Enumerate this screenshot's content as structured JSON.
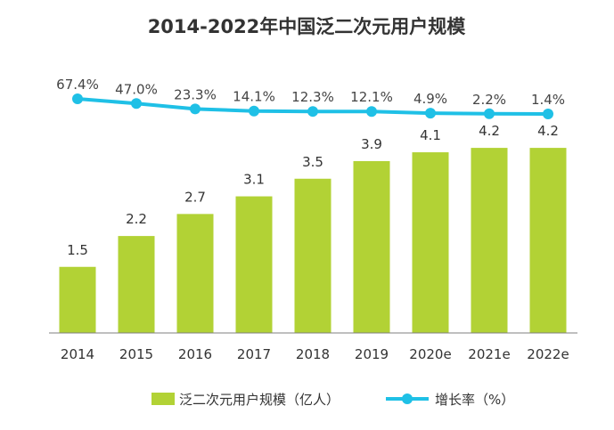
{
  "chart_data": {
    "type": "bar+line",
    "title": "2014-2022年中国泛二次元用户规模",
    "categories": [
      "2014",
      "2015",
      "2016",
      "2017",
      "2018",
      "2019",
      "2020e",
      "2021e",
      "2022e"
    ],
    "series": [
      {
        "name": "泛二次元用户规模（亿人）",
        "type": "bar",
        "values": [
          1.5,
          2.2,
          2.7,
          3.1,
          3.5,
          3.9,
          4.1,
          4.2,
          4.2
        ],
        "labels": [
          "1.5",
          "2.2",
          "2.7",
          "3.1",
          "3.5",
          "3.9",
          "4.1",
          "4.2",
          "4.2"
        ],
        "color": "#b2d235"
      },
      {
        "name": "增长率（%）",
        "type": "line",
        "values": [
          67.4,
          47.0,
          23.3,
          14.1,
          12.3,
          12.1,
          4.9,
          2.2,
          1.4
        ],
        "labels": [
          "67.4%",
          "47.0%",
          "23.3%",
          "14.1%",
          "12.3%",
          "12.1%",
          "4.9%",
          "2.2%",
          "1.4%"
        ],
        "color": "#1fc0e6"
      }
    ],
    "legend_position": "bottom",
    "grid": false
  }
}
